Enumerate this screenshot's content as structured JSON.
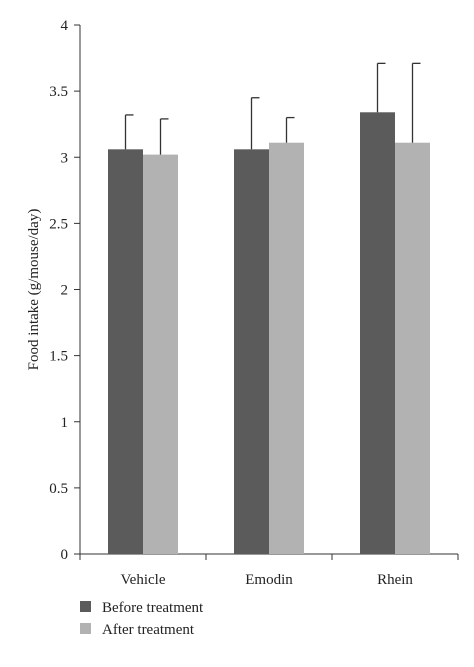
{
  "chart_data": {
    "type": "bar",
    "categories": [
      "Vehicle",
      "Emodin",
      "Rhein"
    ],
    "series": [
      {
        "name": "Before treatment",
        "values": [
          3.06,
          3.06,
          3.34
        ],
        "errors": [
          0.26,
          0.39,
          0.37
        ],
        "color": "#5b5b5b"
      },
      {
        "name": "After treatment",
        "values": [
          3.02,
          3.11,
          3.11
        ],
        "errors": [
          0.27,
          0.19,
          0.6
        ],
        "color": "#b2b2b2"
      }
    ],
    "ylabel": "Food intake (g/mouse/day)",
    "xlabel": "",
    "ylim": [
      0,
      4
    ],
    "yticks": [
      "0",
      "0.5",
      "1",
      "1.5",
      "2",
      "2.5",
      "3",
      "3.5",
      "4"
    ],
    "legend_position": "bottom-left",
    "grid": false
  }
}
